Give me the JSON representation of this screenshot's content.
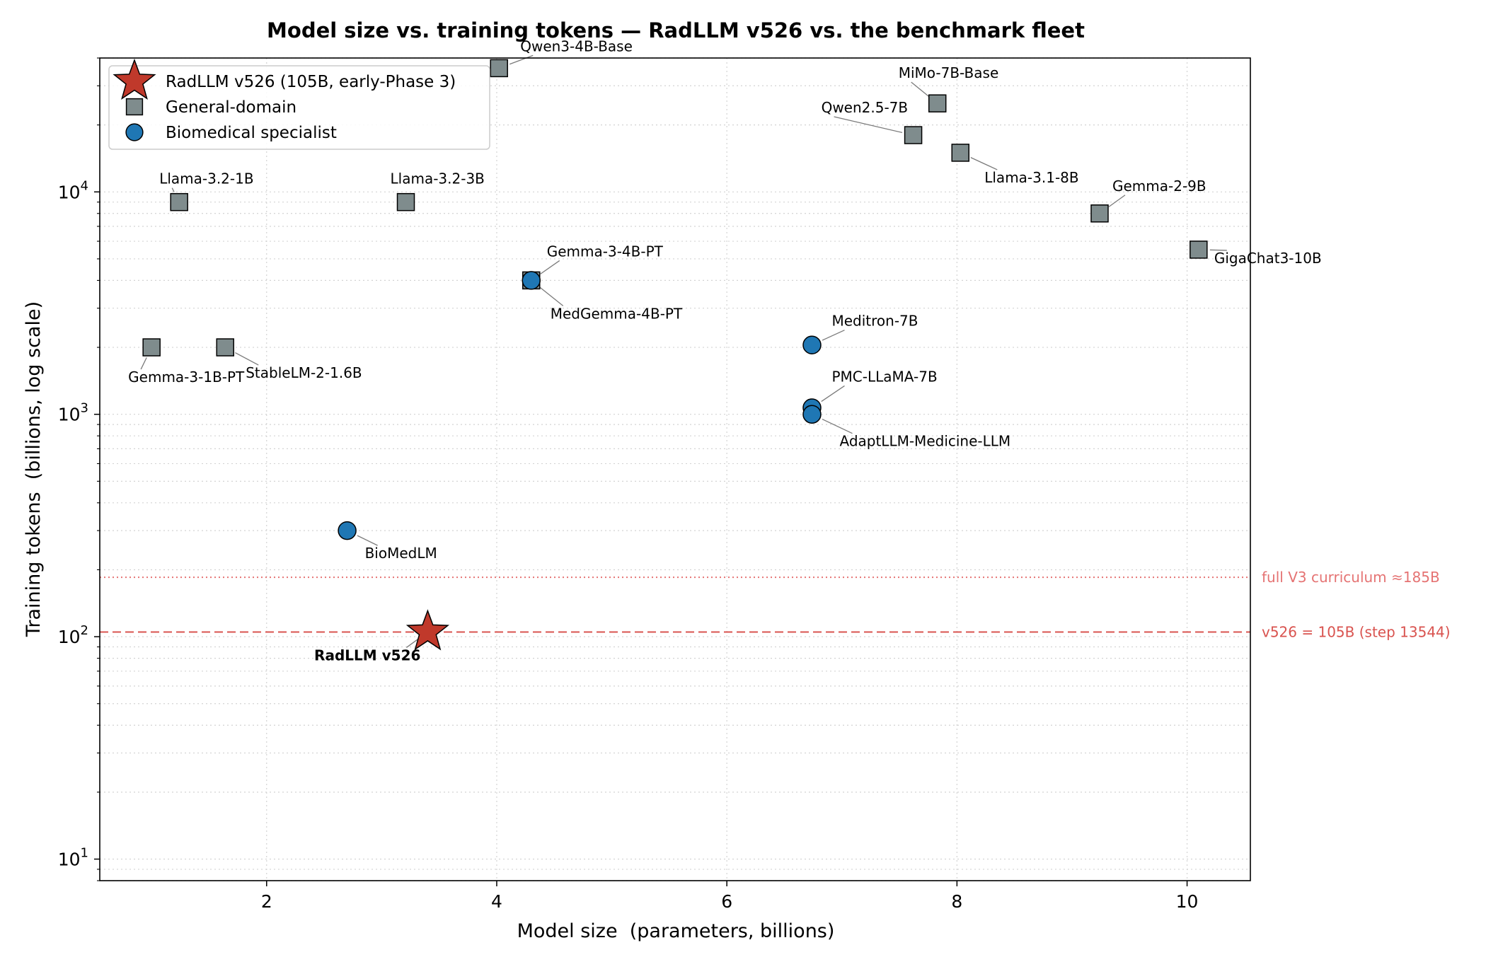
{
  "chart_data": {
    "type": "scatter",
    "title": "Model size vs. training tokens — RadLLM v526 vs. the benchmark fleet",
    "xlabel": "Model size  (parameters, billions)",
    "ylabel": "Training tokens  (billions, log scale)",
    "xlim": [
      0.55,
      10.55
    ],
    "ylim": [
      8,
      40000
    ],
    "yscale": "log",
    "x_ticks": [
      2,
      4,
      6,
      8,
      10
    ],
    "y_ticks": [
      10,
      100,
      1000,
      10000
    ],
    "y_tick_labels": [
      {
        "base": "10",
        "exp": "1"
      },
      {
        "base": "10",
        "exp": "2"
      },
      {
        "base": "10",
        "exp": "3"
      },
      {
        "base": "10",
        "exp": "4"
      }
    ],
    "grid": true,
    "legend_position": "upper-left",
    "legend": [
      {
        "label": "RadLLM v526 (105B, early-Phase 3)",
        "marker": "star",
        "color": "#c0392b"
      },
      {
        "label": "General-domain",
        "marker": "square",
        "color": "#7f8c8d"
      },
      {
        "label": "Biomedical specialist",
        "marker": "circle",
        "color": "#1f77b4"
      }
    ],
    "reference_lines": [
      {
        "y": 185,
        "style": "dotted",
        "color": "#e57373",
        "label": "full V3 curriculum ≈185B"
      },
      {
        "y": 105,
        "style": "dashed",
        "color": "#d9534f",
        "label": "v526 = 105B (step 13544)"
      }
    ],
    "series": [
      {
        "name": "General-domain",
        "marker": "square",
        "color": "#7f8c8d",
        "points": [
          {
            "label": "Qwen3-4B-Base",
            "x": 4.02,
            "y": 36000
          },
          {
            "label": "MiMo-7B-Base",
            "x": 7.83,
            "y": 25000
          },
          {
            "label": "Qwen2.5-7B",
            "x": 7.62,
            "y": 18000
          },
          {
            "label": "Llama-3.1-8B",
            "x": 8.03,
            "y": 15000
          },
          {
            "label": "Llama-3.2-1B",
            "x": 1.24,
            "y": 9000
          },
          {
            "label": "Llama-3.2-3B",
            "x": 3.21,
            "y": 9000
          },
          {
            "label": "Gemma-2-9B",
            "x": 9.24,
            "y": 8000
          },
          {
            "label": "GigaChat3-10B",
            "x": 10.1,
            "y": 5500
          },
          {
            "label": "Gemma-3-4B-PT",
            "x": 4.3,
            "y": 4000
          },
          {
            "label": "Gemma-3-1B-PT",
            "x": 1.0,
            "y": 2000
          },
          {
            "label": "StableLM-2-1.6B",
            "x": 1.64,
            "y": 2000
          }
        ]
      },
      {
        "name": "Biomedical specialist",
        "marker": "circle",
        "color": "#1f77b4",
        "points": [
          {
            "label": "MedGemma-4B-PT",
            "x": 4.3,
            "y": 4000
          },
          {
            "label": "Meditron-7B",
            "x": 6.74,
            "y": 2050
          },
          {
            "label": "PMC-LLaMA-7B",
            "x": 6.74,
            "y": 1070
          },
          {
            "label": "AdaptLLM-Medicine-LLM",
            "x": 6.74,
            "y": 1000
          },
          {
            "label": "BioMedLM",
            "x": 2.7,
            "y": 300
          }
        ]
      },
      {
        "name": "RadLLM v526",
        "marker": "star",
        "color": "#c0392b",
        "points": [
          {
            "label": "RadLLM v526",
            "x": 3.4,
            "y": 105
          }
        ]
      }
    ]
  }
}
